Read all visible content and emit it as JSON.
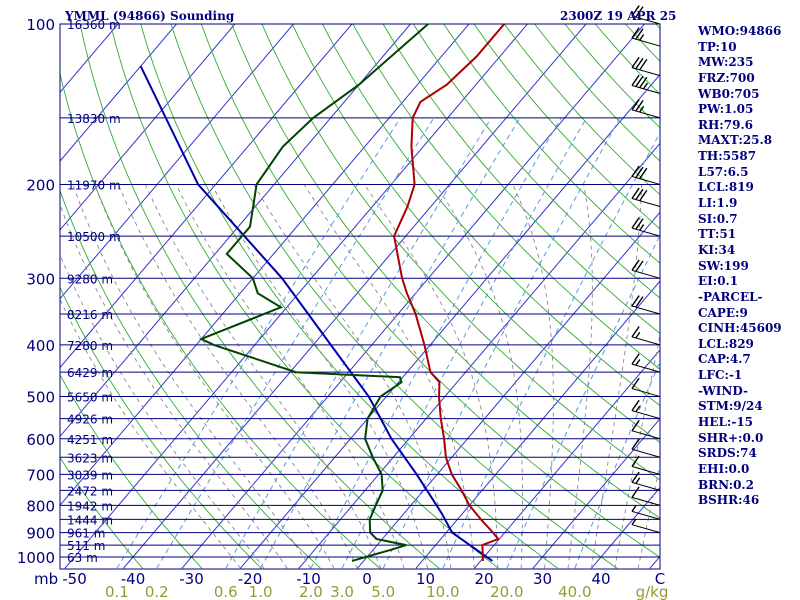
{
  "header": {
    "title": "YMML (94866) Sounding",
    "timestamp": "2300Z 19 APR 25"
  },
  "indices": [
    "WMO:94866",
    "TP:10",
    "MW:235",
    "FRZ:700",
    "WB0:705",
    "PW:1.05",
    "RH:79.6",
    "MAXT:25.8",
    "TH:5587",
    "L57:6.5",
    "LCL:819",
    "LI:1.9",
    "SI:0.7",
    "TT:51",
    "KI:34",
    "SW:199",
    "EI:0.1",
    "-PARCEL-",
    "CAPE:9",
    "CINH:45609",
    "LCL:829",
    "CAP:4.7",
    "LFC:-1",
    "-WIND-",
    "STM:9/24",
    "HEL:-15",
    "SHR+:0.0",
    "SRDS:74",
    "EHI:0.0",
    "BRN:0.2",
    "BSHR:46"
  ],
  "colors": {
    "isobar": "#00007f",
    "isotherm": "#3333cc",
    "dry_adiabat": "#33aa33",
    "moist_adiabat": "#888888",
    "mixing_ratio": "#5599dd",
    "temperature": "#aa0000",
    "dewpoint": "#004400",
    "parcel": "#0000aa",
    "wind_barb": "#000000"
  },
  "chart_data": {
    "type": "skew-t",
    "pressure_axis": {
      "label": "mb",
      "ticks": [
        100,
        200,
        300,
        400,
        500,
        600,
        700,
        800,
        900,
        1000
      ],
      "ticks_text": [
        "100",
        "200",
        "300",
        "400",
        "500",
        "600",
        "700",
        "800",
        "900",
        "1000"
      ],
      "range": [
        100,
        1000
      ],
      "scale": "log"
    },
    "temperature_axis": {
      "label": "C",
      "ticks": [
        -50,
        -40,
        -30,
        -20,
        -10,
        0,
        10,
        20,
        30,
        40
      ],
      "ticks_text": [
        "-50",
        "-40",
        "-30",
        "-20",
        "-10",
        "0",
        "10",
        "20",
        "30",
        "40"
      ],
      "range": [
        -50,
        50
      ]
    },
    "mixing_ratio_axis": {
      "label": "g/kg",
      "values": [
        0.1,
        0.2,
        0.6,
        1.0,
        2.0,
        3.0,
        5.0,
        10.0,
        20.0,
        40.0
      ],
      "ticks_text": [
        "0.1",
        "0.2",
        "0.6",
        "1.0",
        "2.0",
        "3.0",
        "5.0",
        "10.0",
        "20.0",
        "40.0"
      ]
    },
    "height_labels": [
      {
        "p": 100,
        "text": "16360 m"
      },
      {
        "p": 150,
        "text": "13830 m"
      },
      {
        "p": 200,
        "text": "11970 m"
      },
      {
        "p": 250,
        "text": "10500 m"
      },
      {
        "p": 300,
        "text": "9280 m"
      },
      {
        "p": 350,
        "text": "8216 m"
      },
      {
        "p": 400,
        "text": "7280 m"
      },
      {
        "p": 450,
        "text": "6429 m"
      },
      {
        "p": 500,
        "text": "5650 m"
      },
      {
        "p": 550,
        "text": "4926 m"
      },
      {
        "p": 600,
        "text": "4251 m"
      },
      {
        "p": 650,
        "text": "3623 m"
      },
      {
        "p": 700,
        "text": "3039 m"
      },
      {
        "p": 750,
        "text": "2472 m"
      },
      {
        "p": 800,
        "text": "1942 m"
      },
      {
        "p": 850,
        "text": "1444 m"
      },
      {
        "p": 900,
        "text": "961 m"
      },
      {
        "p": 950,
        "text": "511 m"
      },
      {
        "p": 1000,
        "text": "63 m"
      }
    ],
    "temperature_profile": [
      [
        1017,
        20.4
      ],
      [
        1000,
        19.8
      ],
      [
        950,
        18.0
      ],
      [
        925,
        19.8
      ],
      [
        900,
        18.0
      ],
      [
        850,
        14.0
      ],
      [
        800,
        10.0
      ],
      [
        750,
        6.5
      ],
      [
        700,
        2.5
      ],
      [
        650,
        -1.0
      ],
      [
        600,
        -4.0
      ],
      [
        550,
        -7.5
      ],
      [
        500,
        -11.0
      ],
      [
        470,
        -13.0
      ],
      [
        450,
        -16.0
      ],
      [
        400,
        -21.0
      ],
      [
        350,
        -27.0
      ],
      [
        320,
        -31.5
      ],
      [
        300,
        -34.5
      ],
      [
        250,
        -42.0
      ],
      [
        220,
        -44.0
      ],
      [
        200,
        -46.0
      ],
      [
        170,
        -52.0
      ],
      [
        150,
        -56.0
      ],
      [
        140,
        -57.0
      ],
      [
        130,
        -55.0
      ],
      [
        115,
        -54.0
      ],
      [
        100,
        -54.0
      ]
    ],
    "dewpoint_profile": [
      [
        1017,
        -2.0
      ],
      [
        970,
        3.0
      ],
      [
        950,
        5.0
      ],
      [
        925,
        -1.0
      ],
      [
        900,
        -3.0
      ],
      [
        850,
        -5.0
      ],
      [
        800,
        -6.0
      ],
      [
        750,
        -7.0
      ],
      [
        700,
        -9.5
      ],
      [
        650,
        -13.5
      ],
      [
        600,
        -17.5
      ],
      [
        550,
        -20.0
      ],
      [
        500,
        -21.0
      ],
      [
        470,
        -19.5
      ],
      [
        460,
        -20.5
      ],
      [
        450,
        -39.0
      ],
      [
        400,
        -57.0
      ],
      [
        390,
        -60.0
      ],
      [
        340,
        -51.0
      ],
      [
        320,
        -57.0
      ],
      [
        300,
        -60.0
      ],
      [
        270,
        -68.0
      ],
      [
        240,
        -68.0
      ],
      [
        200,
        -73.0
      ],
      [
        170,
        -74.0
      ],
      [
        150,
        -73.0
      ],
      [
        130,
        -70.0
      ],
      [
        100,
        -67.0
      ]
    ],
    "parcel_profile": [
      [
        1017,
        22.0
      ],
      [
        900,
        11.0
      ],
      [
        829,
        6.5
      ],
      [
        700,
        -3.5
      ],
      [
        600,
        -13.0
      ],
      [
        500,
        -23.0
      ],
      [
        400,
        -37.0
      ],
      [
        300,
        -55.0
      ],
      [
        200,
        -83.0
      ],
      [
        120,
        -110.0
      ]
    ],
    "wind_barbs": [
      {
        "p": 100,
        "flags": 0,
        "fulls": 2,
        "halves": 0
      },
      {
        "p": 110,
        "flags": 0,
        "fulls": 2,
        "halves": 1
      },
      {
        "p": 125,
        "flags": 0,
        "fulls": 3,
        "halves": 0
      },
      {
        "p": 135,
        "flags": 0,
        "fulls": 3,
        "halves": 1
      },
      {
        "p": 150,
        "flags": 0,
        "fulls": 2,
        "halves": 1
      },
      {
        "p": 200,
        "flags": 0,
        "fulls": 3,
        "halves": 0
      },
      {
        "p": 220,
        "flags": 0,
        "fulls": 3,
        "halves": 0
      },
      {
        "p": 250,
        "flags": 0,
        "fulls": 2,
        "halves": 1
      },
      {
        "p": 300,
        "flags": 0,
        "fulls": 2,
        "halves": 0
      },
      {
        "p": 350,
        "flags": 0,
        "fulls": 2,
        "halves": 0
      },
      {
        "p": 400,
        "flags": 0,
        "fulls": 1,
        "halves": 1
      },
      {
        "p": 450,
        "flags": 0,
        "fulls": 1,
        "halves": 1
      },
      {
        "p": 500,
        "flags": 0,
        "fulls": 1,
        "halves": 0
      },
      {
        "p": 550,
        "flags": 0,
        "fulls": 1,
        "halves": 1
      },
      {
        "p": 600,
        "flags": 0,
        "fulls": 1,
        "halves": 0
      },
      {
        "p": 650,
        "flags": 0,
        "fulls": 1,
        "halves": 0
      },
      {
        "p": 700,
        "flags": 0,
        "fulls": 1,
        "halves": 0
      },
      {
        "p": 750,
        "flags": 0,
        "fulls": 1,
        "halves": 1
      },
      {
        "p": 800,
        "flags": 0,
        "fulls": 1,
        "halves": 0
      },
      {
        "p": 850,
        "flags": 0,
        "fulls": 0,
        "halves": 1
      },
      {
        "p": 900,
        "flags": 0,
        "fulls": 0,
        "halves": 1
      }
    ]
  }
}
